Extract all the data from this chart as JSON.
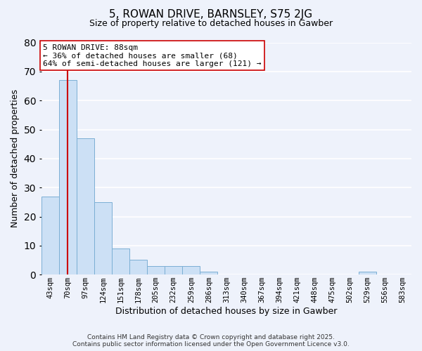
{
  "title": "5, ROWAN DRIVE, BARNSLEY, S75 2JG",
  "subtitle": "Size of property relative to detached houses in Gawber",
  "xlabel": "Distribution of detached houses by size in Gawber",
  "ylabel": "Number of detached properties",
  "bar_values": [
    27,
    67,
    47,
    25,
    9,
    5,
    3,
    3,
    3,
    1,
    0,
    0,
    0,
    0,
    0,
    0,
    0,
    0,
    1,
    0,
    0
  ],
  "bar_labels": [
    "43sqm",
    "70sqm",
    "97sqm",
    "124sqm",
    "151sqm",
    "178sqm",
    "205sqm",
    "232sqm",
    "259sqm",
    "286sqm",
    "313sqm",
    "340sqm",
    "367sqm",
    "394sqm",
    "421sqm",
    "448sqm",
    "475sqm",
    "502sqm",
    "529sqm",
    "556sqm",
    "583sqm"
  ],
  "bar_color": "#cce0f5",
  "bar_edge_color": "#7bafd4",
  "vline_x": 1.0,
  "vline_color": "#cc0000",
  "annotation_title": "5 ROWAN DRIVE: 88sqm",
  "annotation_line1": "← 36% of detached houses are smaller (68)",
  "annotation_line2": "64% of semi-detached houses are larger (121) →",
  "annotation_box_color": "#ffffff",
  "annotation_box_edge": "#cc0000",
  "ylim": [
    0,
    80
  ],
  "yticks": [
    0,
    10,
    20,
    30,
    40,
    50,
    60,
    70,
    80
  ],
  "footnote1": "Contains HM Land Registry data © Crown copyright and database right 2025.",
  "footnote2": "Contains public sector information licensed under the Open Government Licence v3.0.",
  "bg_color": "#eef2fb",
  "grid_color": "#ffffff",
  "title_fontsize": 11,
  "subtitle_fontsize": 9
}
